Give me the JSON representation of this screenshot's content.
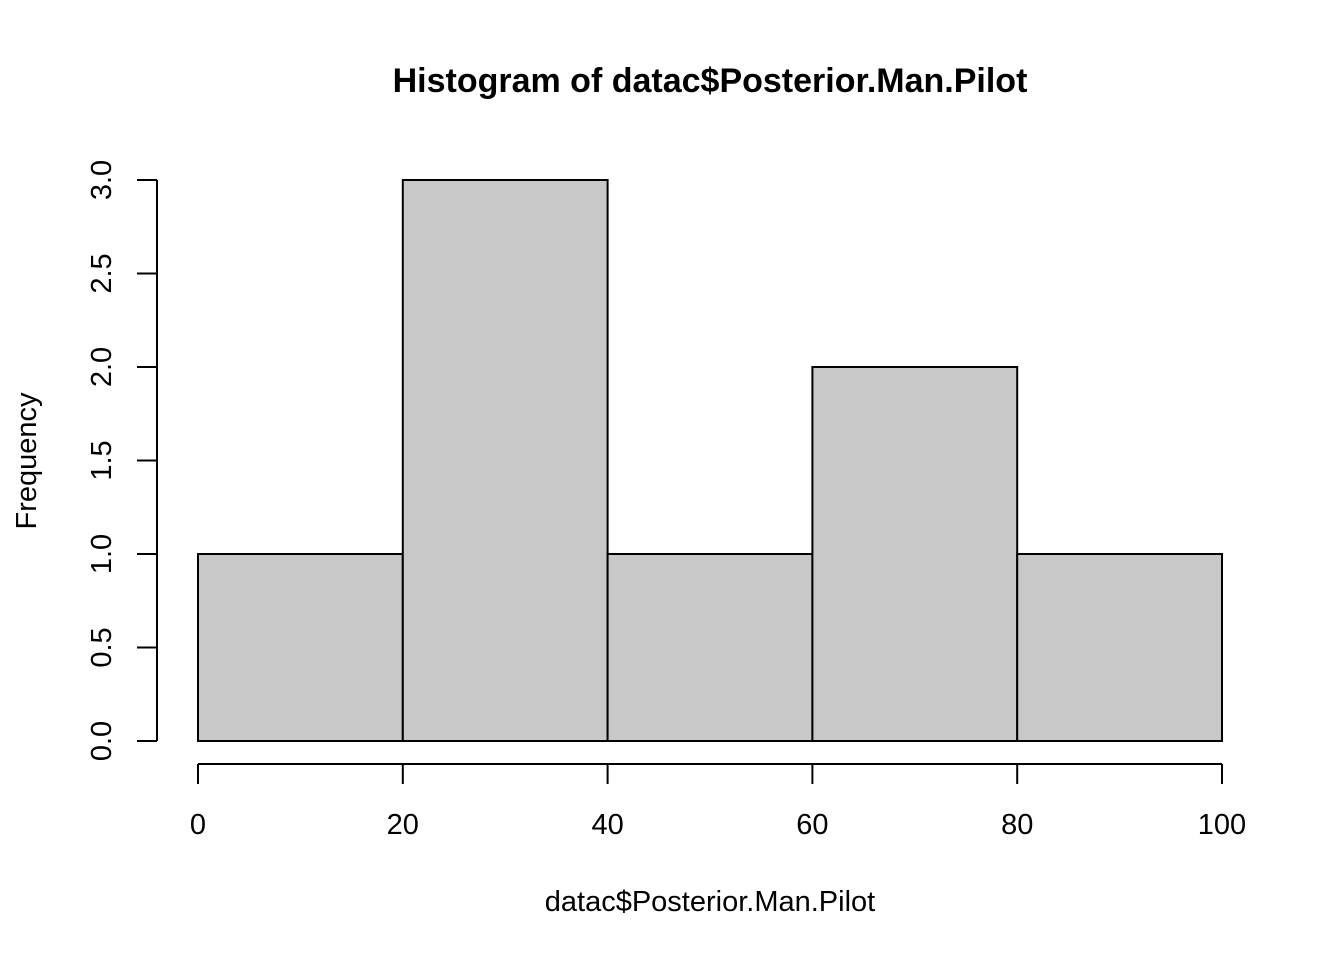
{
  "chart_data": {
    "type": "bar",
    "title": "Histogram of datac$Posterior.Man.Pilot",
    "xlabel": "datac$Posterior.Man.Pilot",
    "ylabel": "Frequency",
    "bins": [
      {
        "from": 0,
        "to": 20,
        "count": 1
      },
      {
        "from": 20,
        "to": 40,
        "count": 3
      },
      {
        "from": 40,
        "to": 60,
        "count": 1
      },
      {
        "from": 60,
        "to": 80,
        "count": 2
      },
      {
        "from": 80,
        "to": 100,
        "count": 1
      }
    ],
    "xlim": [
      0,
      100
    ],
    "ylim": [
      0,
      3
    ],
    "x_ticks": [
      "0",
      "20",
      "40",
      "60",
      "80",
      "100"
    ],
    "y_ticks": [
      "0.0",
      "0.5",
      "1.0",
      "1.5",
      "2.0",
      "2.5",
      "3.0"
    ],
    "grid": false,
    "legend": "none",
    "bar_color": "#c8c8c8",
    "edge_color": "#000000"
  }
}
